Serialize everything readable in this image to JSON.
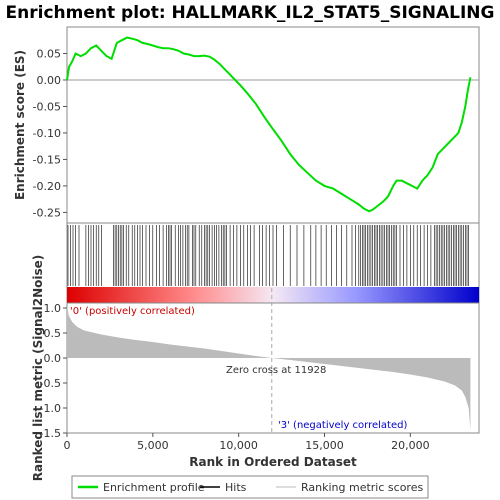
{
  "chart_data": {
    "type": "line",
    "title": "Enrichment plot: HALLMARK_IL2_STAT5_SIGNALING",
    "top_panel": {
      "ylabel": "Enrichment score (ES)",
      "ylim": [
        -0.27,
        0.1
      ],
      "yticks": [
        0.05,
        0.0,
        -0.05,
        -0.1,
        -0.15,
        -0.2,
        -0.25
      ],
      "ytick_labels": [
        "0.05",
        "0.00",
        "-0.05",
        "-0.10",
        "-0.15",
        "-0.20",
        "-0.25"
      ],
      "series": [
        {
          "name": "Enrichment profile",
          "color": "#00dd00",
          "x": [
            0,
            120,
            300,
            500,
            800,
            1100,
            1400,
            1700,
            2000,
            2300,
            2600,
            2900,
            3200,
            3500,
            3800,
            4100,
            4400,
            4700,
            5000,
            5300,
            5600,
            5900,
            6200,
            6500,
            6800,
            7100,
            7400,
            7700,
            8000,
            8300,
            8600,
            8900,
            9200,
            9500,
            9800,
            10100,
            10500,
            11000,
            11500,
            11928,
            12500,
            13000,
            13500,
            14000,
            14500,
            15000,
            15500,
            16000,
            16500,
            17000,
            17300,
            17600,
            17800,
            18000,
            18200,
            18400,
            18700,
            19000,
            19200,
            19500,
            19800,
            20100,
            20400,
            20700,
            21000,
            21300,
            21600,
            21900,
            22200,
            22500,
            22800,
            23000,
            23200,
            23350,
            23500
          ],
          "y": [
            0.0,
            0.025,
            0.035,
            0.05,
            0.045,
            0.05,
            0.06,
            0.065,
            0.055,
            0.045,
            0.04,
            0.07,
            0.075,
            0.08,
            0.078,
            0.075,
            0.07,
            0.068,
            0.065,
            0.062,
            0.06,
            0.06,
            0.058,
            0.055,
            0.05,
            0.048,
            0.045,
            0.045,
            0.046,
            0.044,
            0.038,
            0.03,
            0.02,
            0.01,
            0.0,
            -0.01,
            -0.025,
            -0.045,
            -0.07,
            -0.09,
            -0.115,
            -0.14,
            -0.16,
            -0.175,
            -0.19,
            -0.2,
            -0.205,
            -0.215,
            -0.225,
            -0.235,
            -0.243,
            -0.248,
            -0.245,
            -0.24,
            -0.235,
            -0.23,
            -0.22,
            -0.2,
            -0.19,
            -0.19,
            -0.195,
            -0.2,
            -0.205,
            -0.19,
            -0.18,
            -0.165,
            -0.14,
            -0.13,
            -0.12,
            -0.11,
            -0.1,
            -0.08,
            -0.05,
            -0.02,
            0.005
          ]
        }
      ]
    },
    "bottom_panel": {
      "xlabel": "Rank in Ordered Dataset",
      "ylabel": "Ranked list metric (Signal2Noise)",
      "ylim": [
        -1.5,
        1.1
      ],
      "yticks": [
        1.0,
        0.5,
        0.0,
        -0.5,
        -1.0,
        -1.5
      ],
      "ytick_labels": [
        "1.0",
        "0.5",
        "0.0",
        "-0.5",
        "-1.0",
        "-1.5"
      ],
      "xlim": [
        0,
        24000
      ],
      "xticks": [
        0,
        5000,
        10000,
        15000,
        20000
      ],
      "xtick_labels": [
        "0",
        "5,000",
        "10,000",
        "15,000",
        "20,000"
      ],
      "zero_cross_label": "Zero cross at 11928",
      "zero_cross": 11928,
      "positive_label": "'0' (positively correlated)",
      "negative_label": "'3' (negatively correlated)",
      "metric_x": [
        0,
        100,
        300,
        600,
        1000,
        2000,
        3000,
        4000,
        5000,
        6000,
        7000,
        8000,
        9000,
        10000,
        11000,
        11928,
        13000,
        14000,
        15000,
        16000,
        17000,
        18000,
        19000,
        20000,
        21000,
        22000,
        22600,
        23000,
        23200,
        23400,
        23500
      ],
      "metric_y": [
        1.05,
        0.85,
        0.72,
        0.62,
        0.55,
        0.47,
        0.41,
        0.36,
        0.32,
        0.27,
        0.23,
        0.19,
        0.14,
        0.09,
        0.04,
        0.0,
        -0.04,
        -0.08,
        -0.12,
        -0.16,
        -0.2,
        -0.24,
        -0.28,
        -0.33,
        -0.39,
        -0.47,
        -0.55,
        -0.65,
        -0.78,
        -1.0,
        -1.45
      ]
    },
    "hits": [
      60,
      200,
      350,
      500,
      700,
      1100,
      1250,
      1400,
      1550,
      1700,
      1850,
      2000,
      2700,
      2800,
      2900,
      3000,
      3100,
      3200,
      3300,
      3450,
      3600,
      3800,
      3950,
      4100,
      4250,
      4400,
      4600,
      4800,
      5000,
      5200,
      5400,
      5600,
      5800,
      5900,
      6000,
      6100,
      6300,
      6500,
      6600,
      6750,
      6900,
      7000,
      7100,
      7300,
      7400,
      7500,
      7700,
      7850,
      8000,
      8100,
      8200,
      8300,
      8450,
      8600,
      8700,
      8850,
      9000,
      9100,
      9200,
      9300,
      9500,
      9700,
      9900,
      10100,
      10300,
      10500,
      10700,
      10900,
      11200,
      11400,
      11600,
      11800,
      12000,
      12200,
      12600,
      13000,
      13400,
      13800,
      14200,
      14500,
      14800,
      15100,
      15400,
      15700,
      16000,
      16300,
      16600,
      16800,
      17000,
      17100,
      17200,
      17300,
      17400,
      17500,
      17600,
      17700,
      17800,
      17900,
      18000,
      18100,
      18200,
      18300,
      18400,
      18500,
      18600,
      18700,
      18800,
      18900,
      19000,
      19100,
      19200,
      19400,
      19600,
      19800,
      20000,
      20200,
      20400,
      20600,
      20800,
      21000,
      21200,
      21400,
      21500,
      21600,
      21700,
      21800,
      21900,
      22000,
      22100,
      22200,
      22300,
      22400,
      22500,
      22600,
      22700,
      22800,
      22900,
      23000,
      23100,
      23200,
      23300,
      23400
    ],
    "legend": [
      {
        "label": "Enrichment profile",
        "color": "#00dd00"
      },
      {
        "label": "Hits",
        "color": "#000000"
      },
      {
        "label": "Ranking metric scores",
        "color": "#bbbbbb"
      }
    ]
  }
}
